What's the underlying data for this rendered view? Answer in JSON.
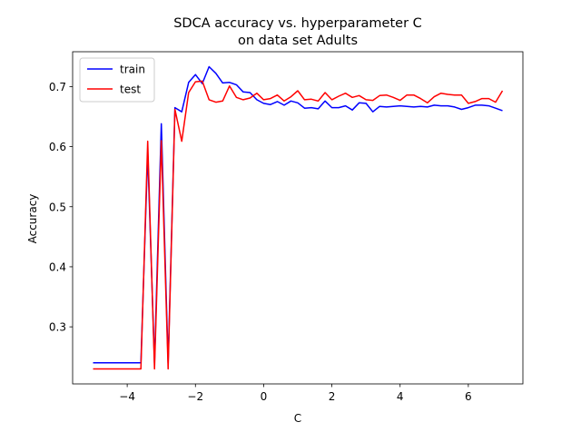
{
  "chart_data": {
    "type": "line",
    "title_line1": "SDCA accuracy vs. hyperparameter C",
    "title_line2": "on data set Adults",
    "xlabel": "C",
    "ylabel": "Accuracy",
    "xlim": [
      -5.6,
      7.6
    ],
    "ylim": [
      0.205,
      0.758
    ],
    "xticks": [
      -4,
      -2,
      0,
      2,
      4,
      6
    ],
    "yticks": [
      0.3,
      0.4,
      0.5,
      0.6,
      0.7
    ],
    "x": [
      -5.0,
      -4.8,
      -4.6,
      -4.4,
      -4.2,
      -4.0,
      -3.8,
      -3.6,
      -3.4,
      -3.2,
      -3.0,
      -2.8,
      -2.6,
      -2.4,
      -2.2,
      -2.0,
      -1.8,
      -1.6,
      -1.4,
      -1.2,
      -1.0,
      -0.8,
      -0.6,
      -0.4,
      -0.2,
      0.0,
      0.2,
      0.4,
      0.6,
      0.8,
      1.0,
      1.2,
      1.4,
      1.6,
      1.8,
      2.0,
      2.2,
      2.4,
      2.6,
      2.8,
      3.0,
      3.2,
      3.4,
      3.6,
      3.8,
      4.0,
      4.2,
      4.4,
      4.6,
      4.8,
      5.0,
      5.2,
      5.4,
      5.6,
      5.8,
      6.0,
      6.2,
      6.4,
      6.6,
      6.8,
      7.0
    ],
    "series": [
      {
        "name": "train",
        "color": "#0000ff",
        "values": [
          0.24,
          0.24,
          0.24,
          0.24,
          0.24,
          0.24,
          0.24,
          0.24,
          0.59,
          0.24,
          0.638,
          0.24,
          0.665,
          0.658,
          0.707,
          0.72,
          0.705,
          0.733,
          0.722,
          0.706,
          0.707,
          0.703,
          0.691,
          0.69,
          0.678,
          0.672,
          0.67,
          0.675,
          0.669,
          0.676,
          0.673,
          0.664,
          0.665,
          0.663,
          0.676,
          0.665,
          0.665,
          0.668,
          0.661,
          0.673,
          0.672,
          0.658,
          0.667,
          0.666,
          0.667,
          0.668,
          0.667,
          0.666,
          0.667,
          0.666,
          0.669,
          0.668,
          0.668,
          0.666,
          0.662,
          0.665,
          0.669,
          0.669,
          0.668,
          0.664,
          0.66
        ]
      },
      {
        "name": "test",
        "color": "#ff0000",
        "values": [
          0.23,
          0.23,
          0.23,
          0.23,
          0.23,
          0.23,
          0.23,
          0.23,
          0.609,
          0.23,
          0.61,
          0.23,
          0.662,
          0.609,
          0.69,
          0.708,
          0.709,
          0.678,
          0.674,
          0.676,
          0.701,
          0.682,
          0.678,
          0.681,
          0.689,
          0.678,
          0.68,
          0.686,
          0.676,
          0.683,
          0.693,
          0.678,
          0.679,
          0.676,
          0.69,
          0.678,
          0.684,
          0.689,
          0.682,
          0.685,
          0.678,
          0.677,
          0.685,
          0.686,
          0.682,
          0.677,
          0.686,
          0.686,
          0.68,
          0.673,
          0.683,
          0.689,
          0.687,
          0.686,
          0.686,
          0.672,
          0.675,
          0.68,
          0.68,
          0.674,
          0.693
        ]
      }
    ],
    "legend_position": "top-left",
    "grid": false
  }
}
